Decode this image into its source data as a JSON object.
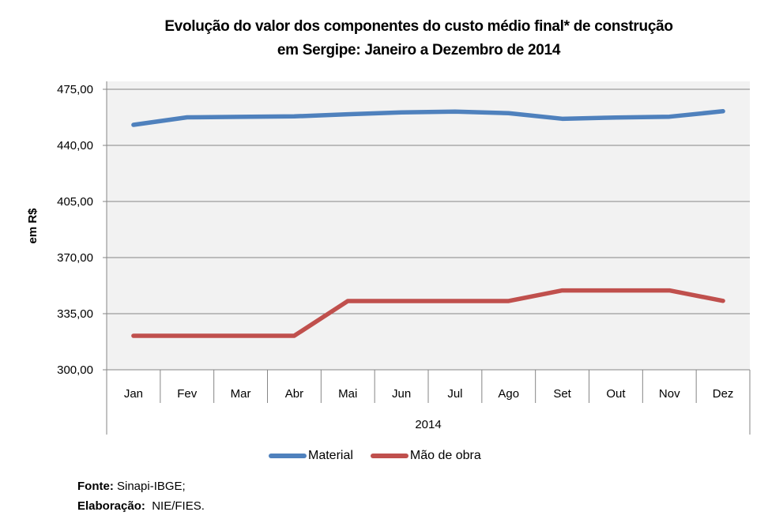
{
  "chart_data": {
    "type": "line",
    "title_line1": "Evolução do valor dos componentes do custo médio final* de construção",
    "title_line2": "em Sergipe: Janeiro a Dezembro de 2014",
    "xlabel": "2014",
    "ylabel": "em R$",
    "categories": [
      "Jan",
      "Fev",
      "Mar",
      "Abr",
      "Mai",
      "Jun",
      "Jul",
      "Ago",
      "Set",
      "Out",
      "Nov",
      "Dez"
    ],
    "ylim": [
      300,
      475
    ],
    "yticks": [
      300,
      335,
      370,
      405,
      440,
      475
    ],
    "ytick_labels": [
      "300,00",
      "335,00",
      "370,00",
      "405,00",
      "440,00",
      "475,00"
    ],
    "grid": true,
    "legend_position": "bottom",
    "series": [
      {
        "name": "Material",
        "color": "#4f81bd",
        "values": [
          452.8,
          457.5,
          457.8,
          458.1,
          459.4,
          460.6,
          461.1,
          460.1,
          456.6,
          457.4,
          457.9,
          461.3
        ]
      },
      {
        "name": "Mão de obra",
        "color": "#c0504d",
        "values": [
          321.2,
          321.2,
          321.2,
          321.2,
          342.9,
          342.9,
          342.9,
          342.9,
          349.5,
          349.5,
          349.5,
          343.0
        ]
      }
    ]
  },
  "footer": {
    "source_label": "Fonte:",
    "source_value": " Sinapi-IBGE;",
    "credit_label": "Elaboração:",
    "credit_value": "  NIE/FIES."
  }
}
